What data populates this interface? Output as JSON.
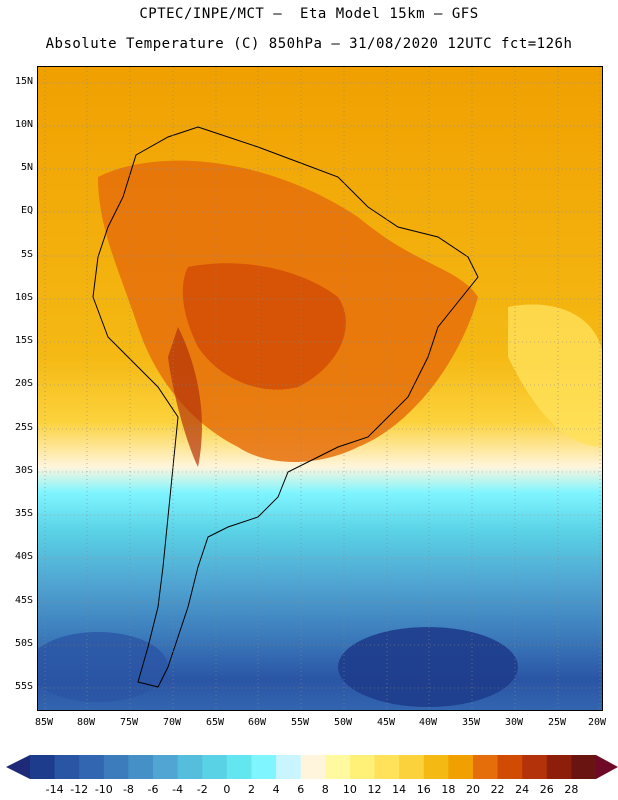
{
  "header": {
    "line1": "CPTEC/INPE/MCT –  Eta Model 15km – GFS",
    "line2": "Absolute Temperature (C) 850hPa – 31/08/2020 12UTC fct=126h"
  },
  "map": {
    "lat_ticks": [
      "15N",
      "10N",
      "5N",
      "EQ",
      "5S",
      "10S",
      "15S",
      "20S",
      "25S",
      "30S",
      "35S",
      "40S",
      "45S",
      "50S",
      "55S"
    ],
    "lon_ticks": [
      "85W",
      "80W",
      "75W",
      "70W",
      "65W",
      "60W",
      "55W",
      "50W",
      "45W",
      "40W",
      "35W",
      "30W",
      "25W",
      "20W"
    ],
    "land_outline_color": "#000000",
    "grid_color": "#888888"
  },
  "colorbar": {
    "labels": [
      "-14",
      "-12",
      "-10",
      "-8",
      "-6",
      "-4",
      "-2",
      "0",
      "2",
      "4",
      "6",
      "8",
      "10",
      "12",
      "14",
      "16",
      "18",
      "20",
      "22",
      "24",
      "26",
      "28"
    ],
    "colors": [
      "#1e3c8c",
      "#2a55a5",
      "#3366b0",
      "#3c7cbc",
      "#4690c8",
      "#50a5d2",
      "#55bedc",
      "#5ad2e6",
      "#64e6f0",
      "#7ff5ff",
      "#c8f5ff",
      "#fff5dc",
      "#fffaa0",
      "#fff078",
      "#ffe15a",
      "#fcd23c",
      "#f5b914",
      "#f0a000",
      "#e66e0a",
      "#d24b05",
      "#b4320a",
      "#8c1e0a",
      "#691410"
    ],
    "end_left_color": "#1e2a78",
    "end_right_color": "#6e0a28"
  }
}
